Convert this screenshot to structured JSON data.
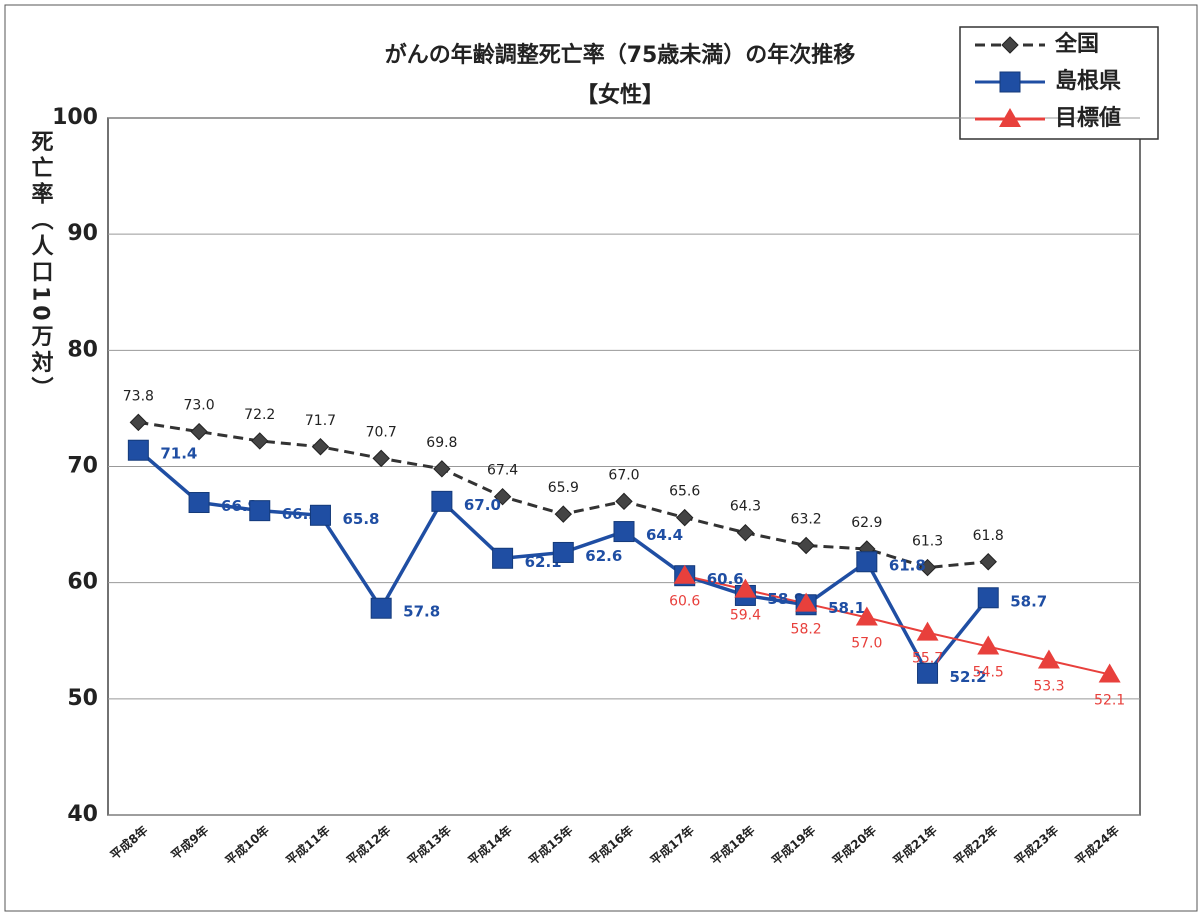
{
  "chart_data": {
    "type": "line",
    "title": "がんの年齢調整死亡率（75歳未満）の年次推移",
    "subtitle": "【女性】",
    "y_label": "死亡率（人口10万対）",
    "categories": [
      "平成8年",
      "平成9年",
      "平成10年",
      "平成11年",
      "平成12年",
      "平成13年",
      "平成14年",
      "平成15年",
      "平成16年",
      "平成17年",
      "平成18年",
      "平成19年",
      "平成20年",
      "平成21年",
      "平成22年",
      "平成23年",
      "平成24年"
    ],
    "series": [
      {
        "name": "全国",
        "color": "#333333",
        "marker": "diamond",
        "dash": true,
        "values": [
          73.8,
          73.0,
          72.2,
          71.7,
          70.7,
          69.8,
          67.4,
          65.9,
          67.0,
          65.6,
          64.3,
          63.2,
          62.9,
          61.3,
          61.8,
          null,
          null
        ],
        "value_labels": [
          "73.8",
          "73.0",
          "72.2",
          "71.7",
          "70.7",
          "69.8",
          "67.4",
          "65.9",
          "67.0",
          "65.6",
          "64.3",
          "63.2",
          "62.9",
          "61.3",
          "61.8",
          null,
          null
        ]
      },
      {
        "name": "島根県",
        "color": "#1f4ea3",
        "marker": "square",
        "dash": false,
        "values": [
          71.4,
          66.9,
          66.2,
          65.8,
          57.8,
          67.0,
          62.1,
          62.6,
          64.4,
          60.6,
          58.9,
          58.1,
          61.8,
          52.2,
          58.7,
          null,
          null
        ],
        "value_labels": [
          "71.4",
          "66.9",
          "66.2",
          "65.8",
          "57.8",
          "67.0",
          "62.1",
          "62.6",
          "64.4",
          "60.6",
          "58.9",
          "58.1",
          "61.8",
          "52.2",
          "58.7",
          null,
          null
        ]
      },
      {
        "name": "目標値",
        "color": "#e8403c",
        "marker": "triangle",
        "dash": false,
        "values": [
          null,
          null,
          null,
          null,
          null,
          null,
          null,
          null,
          null,
          60.6,
          59.4,
          58.2,
          57.0,
          55.7,
          54.5,
          53.3,
          52.1
        ],
        "value_labels": [
          null,
          null,
          null,
          null,
          null,
          null,
          null,
          null,
          null,
          "60.6",
          "59.4",
          "58.2",
          "57.0",
          "55.7",
          "54.5",
          "53.3",
          "52.1"
        ]
      }
    ],
    "ylim": [
      40,
      100
    ],
    "yticks": [
      40,
      50,
      60,
      70,
      80,
      90,
      100
    ],
    "grid": true,
    "legend": "top-right"
  }
}
